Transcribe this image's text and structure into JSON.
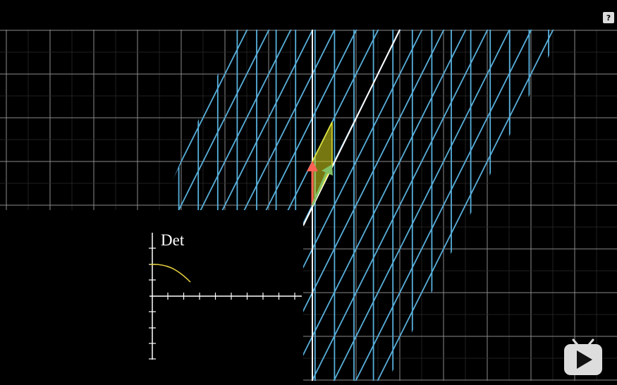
{
  "inset": {
    "label": "Det"
  },
  "help_icon": "?"
}
